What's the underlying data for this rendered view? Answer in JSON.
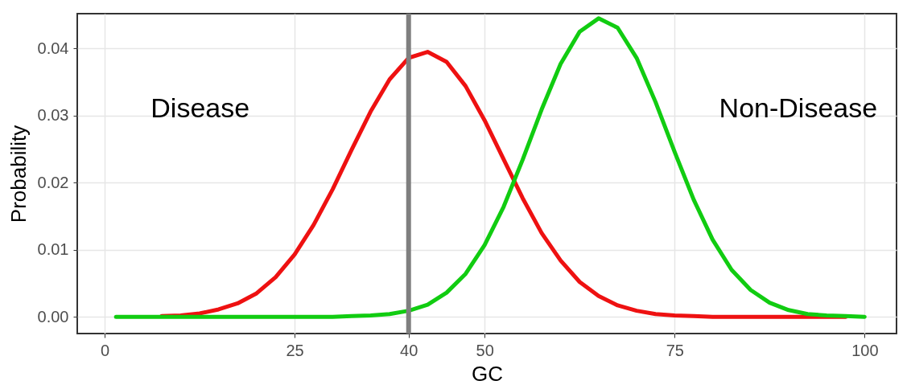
{
  "chart_data": {
    "type": "line",
    "xlabel": "GC",
    "ylabel": "Probability",
    "xlim": [
      -3.6,
      104.2
    ],
    "ylim": [
      -0.0025,
      0.0452
    ],
    "xticks": [
      0,
      25,
      40,
      50,
      75,
      100
    ],
    "yticks": [
      {
        "value": 0,
        "label": "0.00"
      },
      {
        "value": 0.01,
        "label": "0.01"
      },
      {
        "value": 0.02,
        "label": "0.02"
      },
      {
        "value": 0.03,
        "label": "0.03"
      },
      {
        "value": 0.04,
        "label": "0.04"
      }
    ],
    "grid": true,
    "marker": "none",
    "line_style": "solid",
    "series": [
      {
        "color": "#ee1111",
        "x": [
          7.5,
          10,
          12.5,
          15,
          17.5,
          20,
          22.5,
          25,
          27.5,
          30,
          32.5,
          35,
          37.5,
          40,
          42.5,
          45,
          47.5,
          50,
          52.5,
          55,
          57.5,
          60,
          62.5,
          65,
          67.5,
          70,
          72.5,
          75,
          77.5,
          80,
          85,
          90,
          97.5
        ],
        "values": [
          0.0001,
          0.0002,
          0.0005,
          0.0011,
          0.002,
          0.0035,
          0.0059,
          0.0093,
          0.0137,
          0.019,
          0.0249,
          0.0306,
          0.0354,
          0.0386,
          0.0395,
          0.038,
          0.0344,
          0.0293,
          0.0235,
          0.0177,
          0.0125,
          0.0084,
          0.0052,
          0.0031,
          0.0017,
          0.0009,
          0.0004,
          0.0002,
          0.0001,
          0,
          0,
          0,
          0
        ]
      },
      {
        "color": "#11cc11",
        "x": [
          1.5,
          10,
          20,
          30,
          32.5,
          35,
          37.5,
          40,
          42.5,
          45,
          47.5,
          50,
          52.5,
          55,
          57.5,
          60,
          62.5,
          65,
          67.5,
          70,
          72.5,
          75,
          77.5,
          80,
          82.5,
          85,
          87.5,
          90,
          92.5,
          95,
          97.5,
          100
        ],
        "values": [
          0,
          0,
          0,
          0,
          0.0001,
          0.0002,
          0.0004,
          0.0009,
          0.0018,
          0.0036,
          0.0064,
          0.0107,
          0.0164,
          0.0234,
          0.0309,
          0.0377,
          0.0425,
          0.0445,
          0.0431,
          0.0386,
          0.032,
          0.0246,
          0.0175,
          0.0115,
          0.007,
          0.004,
          0.0021,
          0.001,
          0.0004,
          0.0002,
          0.0001,
          0
        ]
      }
    ],
    "ref_lines": [
      {
        "axis": "x",
        "value": 40,
        "color": "#7f7f7f"
      }
    ],
    "annotations": [
      "Disease",
      "Non-Disease"
    ]
  }
}
